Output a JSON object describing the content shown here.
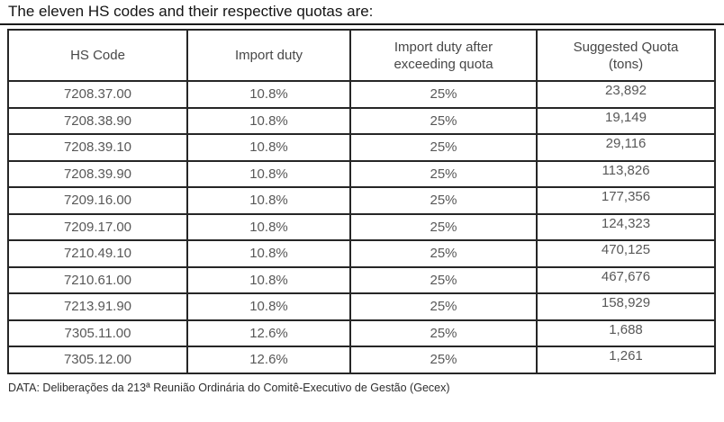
{
  "title": "The eleven HS codes and their respective quotas are:",
  "table": {
    "headers": [
      "HS Code",
      "Import duty",
      "Import duty after\nexceeding quota",
      "Suggested Quota\n(tons)"
    ],
    "rows": [
      {
        "hs_code": "7208.37.00",
        "import_duty": "10.8%",
        "duty_after_quota": "25%",
        "suggested_quota": "23,892"
      },
      {
        "hs_code": "7208.38.90",
        "import_duty": "10.8%",
        "duty_after_quota": "25%",
        "suggested_quota": "19,149"
      },
      {
        "hs_code": "7208.39.10",
        "import_duty": "10.8%",
        "duty_after_quota": "25%",
        "suggested_quota": "29,116"
      },
      {
        "hs_code": "7208.39.90",
        "import_duty": "10.8%",
        "duty_after_quota": "25%",
        "suggested_quota": "113,826"
      },
      {
        "hs_code": "7209.16.00",
        "import_duty": "10.8%",
        "duty_after_quota": "25%",
        "suggested_quota": "177,356"
      },
      {
        "hs_code": "7209.17.00",
        "import_duty": "10.8%",
        "duty_after_quota": "25%",
        "suggested_quota": "124,323"
      },
      {
        "hs_code": "7210.49.10",
        "import_duty": "10.8%",
        "duty_after_quota": "25%",
        "suggested_quota": "470,125"
      },
      {
        "hs_code": "7210.61.00",
        "import_duty": "10.8%",
        "duty_after_quota": "25%",
        "suggested_quota": "467,676"
      },
      {
        "hs_code": "7213.91.90",
        "import_duty": "10.8%",
        "duty_after_quota": "25%",
        "suggested_quota": "158,929"
      },
      {
        "hs_code": "7305.11.00",
        "import_duty": "12.6%",
        "duty_after_quota": "25%",
        "suggested_quota": "1,688"
      },
      {
        "hs_code": "7305.12.00",
        "import_duty": "12.6%",
        "duty_after_quota": "25%",
        "suggested_quota": "1,261"
      }
    ]
  },
  "footer": "DATA: Deliberações da 213ª Reunião Ordinária do Comitê-Executivo de Gestão (Gecex)",
  "colors": {
    "border": "#1f1f1f",
    "title_text": "#141414",
    "cell_text": "#585858",
    "footer_text": "#2e2e2e"
  }
}
